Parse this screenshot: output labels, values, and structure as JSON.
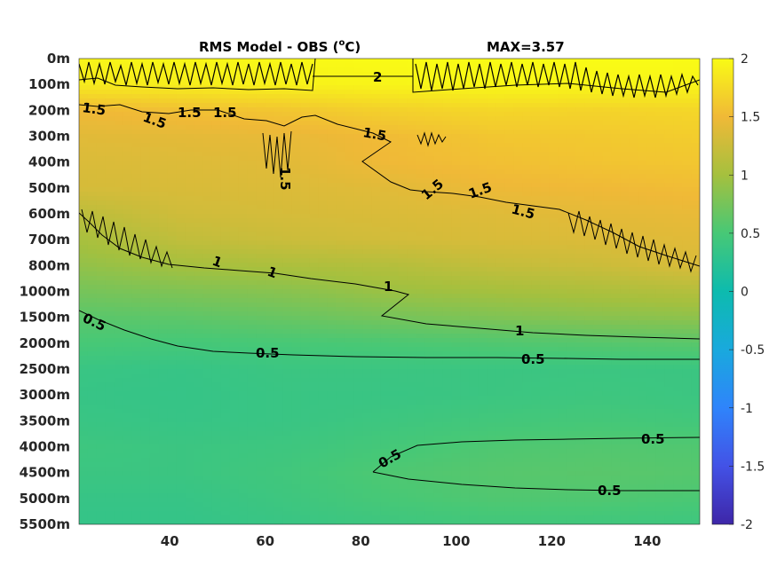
{
  "chart_data": {
    "type": "heatmap",
    "title": "RMS Model - OBS (",
    "title_superscript": "o",
    "title_unit": "C)",
    "max_label": "MAX=3.57",
    "x": [
      21,
      151
    ],
    "xticks": [
      40,
      60,
      80,
      100,
      120,
      140
    ],
    "yticks": [
      "0m",
      "100m",
      "200m",
      "300m",
      "400m",
      "500m",
      "600m",
      "700m",
      "800m",
      "1000m",
      "1500m",
      "2000m",
      "2500m",
      "3000m",
      "3500m",
      "4000m",
      "4500m",
      "5000m",
      "5500m"
    ],
    "colorbar": {
      "ticks": [
        "2",
        "1.5",
        "1",
        "0.5",
        "0",
        "-0.5",
        "-1",
        "-1.5",
        "-2"
      ],
      "range": [
        -2,
        2
      ],
      "colormap": "parula"
    },
    "field": [
      [
        1.95,
        1.97,
        1.98,
        2.0,
        2.0,
        2.0,
        2.0
      ],
      [
        1.88,
        1.9,
        1.93,
        1.95,
        1.98,
        1.97,
        1.95
      ],
      [
        1.5,
        1.55,
        1.6,
        1.68,
        1.72,
        1.7,
        1.72
      ],
      [
        1.4,
        1.42,
        1.45,
        1.52,
        1.6,
        1.62,
        1.65
      ],
      [
        1.35,
        1.37,
        1.4,
        1.5,
        1.55,
        1.58,
        1.6
      ],
      [
        1.32,
        1.34,
        1.36,
        1.4,
        1.48,
        1.5,
        1.53
      ],
      [
        1.15,
        1.28,
        1.32,
        1.35,
        1.38,
        1.42,
        1.45
      ],
      [
        1.02,
        1.18,
        1.25,
        1.3,
        1.34,
        1.36,
        1.4
      ],
      [
        0.9,
        1.0,
        1.05,
        1.1,
        1.2,
        1.25,
        1.35
      ],
      [
        0.75,
        0.8,
        0.85,
        0.95,
        1.0,
        1.05,
        1.1
      ],
      [
        0.6,
        0.62,
        0.68,
        0.75,
        0.8,
        0.85,
        0.88
      ],
      [
        0.5,
        0.48,
        0.5,
        0.52,
        0.55,
        0.58,
        0.6
      ],
      [
        0.38,
        0.36,
        0.4,
        0.4,
        0.4,
        0.4,
        0.4
      ],
      [
        0.36,
        0.35,
        0.38,
        0.38,
        0.4,
        0.42,
        0.4
      ],
      [
        0.38,
        0.36,
        0.38,
        0.42,
        0.46,
        0.48,
        0.46
      ],
      [
        0.42,
        0.4,
        0.42,
        0.48,
        0.54,
        0.56,
        0.55
      ],
      [
        0.4,
        0.4,
        0.45,
        0.54,
        0.58,
        0.6,
        0.58
      ],
      [
        0.36,
        0.36,
        0.42,
        0.5,
        0.55,
        0.55,
        0.52
      ],
      [
        0.34,
        0.34,
        0.38,
        0.42,
        0.45,
        0.44,
        0.42
      ]
    ],
    "contour_labels": [
      "2",
      "1.5",
      "1.5",
      "1.5",
      "1.5",
      "1.5",
      "1.5",
      "1.5",
      "1.5",
      "1.5",
      "1",
      "1",
      "1",
      "1",
      "0.5",
      "0.5",
      "0.5",
      "0.5",
      "0.5",
      "0.5"
    ]
  }
}
